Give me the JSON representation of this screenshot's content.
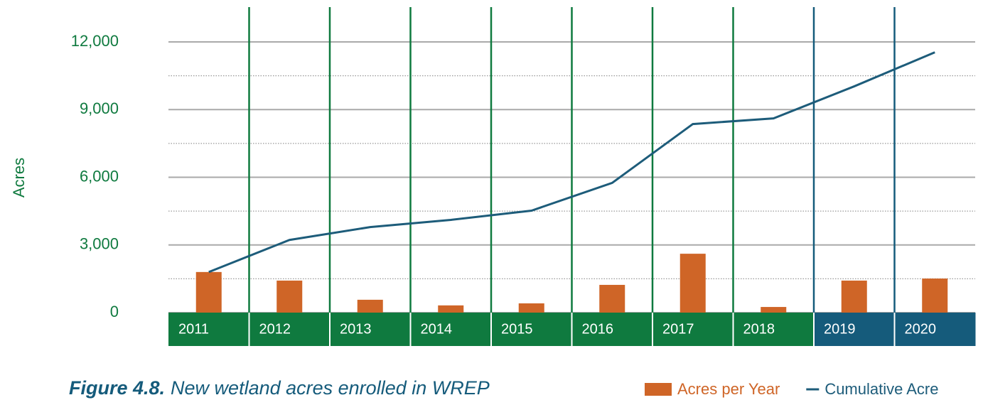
{
  "chart_data": {
    "type": "bar_line",
    "figure_label": "Figure 4.8.",
    "title": "New wetland acres enrolled in WREP",
    "y_label": "Acres",
    "categories": [
      "2011",
      "2012",
      "2013",
      "2014",
      "2015",
      "2016",
      "2017",
      "2018",
      "2019",
      "2020"
    ],
    "category_colors": [
      "#0f7a3f",
      "#0f7a3f",
      "#0f7a3f",
      "#0f7a3f",
      "#0f7a3f",
      "#0f7a3f",
      "#0f7a3f",
      "#0f7a3f",
      "#155b7b",
      "#155b7b"
    ],
    "series": [
      {
        "name": "Acres per Year",
        "type": "bar",
        "color": "#cf6527",
        "values": [
          1800,
          1420,
          570,
          320,
          410,
          1230,
          2610,
          250,
          1420,
          1510
        ]
      },
      {
        "name": "Cumulative Acre",
        "type": "line",
        "color": "#1d5c7a",
        "values": [
          1800,
          3220,
          3790,
          4110,
          4520,
          5750,
          8360,
          8610,
          10030,
          11540
        ]
      }
    ],
    "ylim": [
      0,
      12000
    ],
    "yticks": [
      0,
      {
        "value": 3000,
        "label": "3,000"
      },
      {
        "value": 6000,
        "label": "6,000"
      },
      {
        "value": 9000,
        "label": "9,000"
      },
      {
        "value": 12000,
        "label": "12,000"
      }
    ],
    "minor_yticks": [
      1500,
      4500,
      7500,
      10500
    ],
    "grid": true
  }
}
